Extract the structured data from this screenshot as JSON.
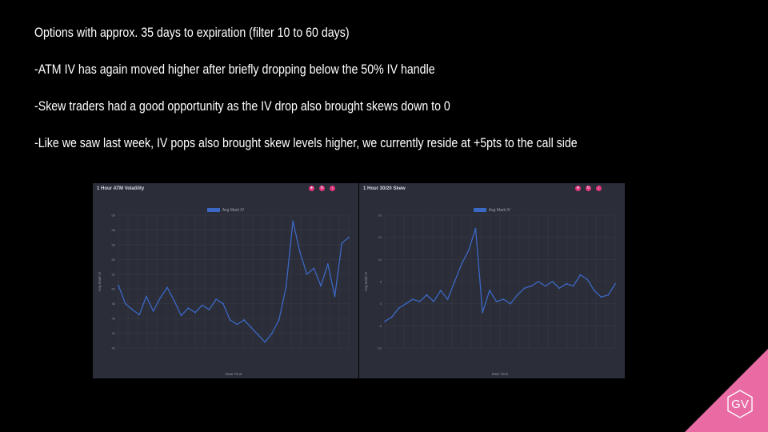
{
  "slide": {
    "bullets": [
      "Options with approx. 35 days to expiration (filter 10 to 60 days)",
      "-ATM IV has again moved higher after briefly dropping below the 50% IV handle",
      "-Skew traders had a good opportunity as the IV drop also brought skews down to 0",
      "-Like we saw last week, IV pops also brought skew levels higher, we currently reside at +5pts to the call side"
    ],
    "logo_text": "GV"
  },
  "colors": {
    "background": "#000000",
    "panel": "#2b2d38",
    "series": "#3b68c4",
    "grid": "#3a3d4a",
    "accent_pink": "#e86ba3",
    "button": "#e1387d"
  },
  "panel_icons": [
    "camera-icon",
    "refresh-icon",
    "download-icon"
  ],
  "chart_data": [
    {
      "type": "line",
      "title": "1 Hour ATM Volatility",
      "xlabel": "Date Time",
      "ylabel": "Avg Mark IV",
      "ylim": [
        42,
        60
      ],
      "yticks": [
        42,
        44,
        46,
        48,
        50,
        52,
        54,
        56,
        58,
        60
      ],
      "grid": true,
      "legend_position": "top-center",
      "series": [
        {
          "name": "Avg Mark IV",
          "color": "#3b68c4",
          "x_index": [
            0,
            3,
            6,
            9,
            12,
            15,
            18,
            21,
            24,
            27,
            30,
            33,
            36,
            39,
            42,
            45,
            48,
            51,
            54,
            57,
            60,
            63,
            66,
            69,
            72,
            75,
            78,
            81,
            84,
            87,
            90,
            93,
            96,
            99
          ],
          "values": [
            50.5,
            48.0,
            47.2,
            46.5,
            49.0,
            47.0,
            48.8,
            50.2,
            48.4,
            46.4,
            47.4,
            46.8,
            47.8,
            47.2,
            48.6,
            48.0,
            45.8,
            45.2,
            45.8,
            44.8,
            43.8,
            42.8,
            44.0,
            45.8,
            50.2,
            59.2,
            55.0,
            52.0,
            52.8,
            50.4,
            53.4,
            49.0,
            56.2,
            57.0
          ]
        }
      ]
    },
    {
      "type": "line",
      "title": "1 Hour 30/20 Skew",
      "xlabel": "Date Time",
      "ylabel": "Avg Mark IV",
      "ylim": [
        -10,
        20
      ],
      "yticks": [
        -10,
        -5,
        0,
        5,
        10,
        15,
        20
      ],
      "grid": true,
      "legend_position": "top-center",
      "series": [
        {
          "name": "Avg Mark IV",
          "color": "#3b68c4",
          "x_index": [
            0,
            3,
            6,
            9,
            12,
            15,
            18,
            21,
            24,
            27,
            30,
            33,
            36,
            39,
            42,
            45,
            48,
            51,
            54,
            57,
            60,
            63,
            66,
            69,
            72,
            75,
            78,
            81,
            84,
            87,
            90,
            93,
            96,
            99
          ],
          "values": [
            -4.0,
            -3.0,
            -1.0,
            0.0,
            1.0,
            0.5,
            2.0,
            0.5,
            3.0,
            1.0,
            5.0,
            9.0,
            12.0,
            17.0,
            -2.0,
            3.0,
            0.5,
            1.0,
            0.0,
            2.0,
            3.5,
            4.0,
            5.0,
            4.0,
            5.0,
            3.5,
            4.5,
            4.0,
            6.5,
            5.5,
            3.0,
            1.5,
            2.0,
            4.5
          ]
        }
      ]
    }
  ]
}
